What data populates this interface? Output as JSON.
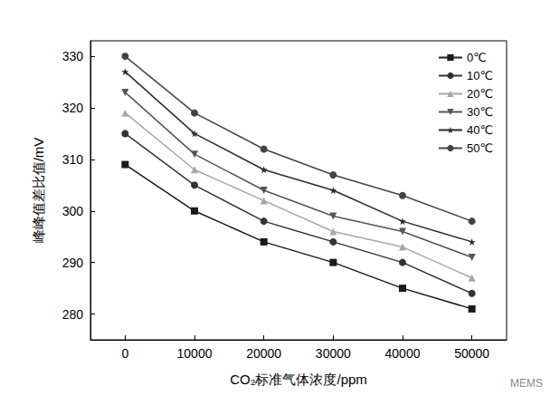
{
  "chart_data": {
    "type": "line",
    "x_label": "CO₂标准气体浓度/ppm",
    "y_label": "峰峰值差比值/mV",
    "categories": [
      "0",
      "10000",
      "20000",
      "30000",
      "40000",
      "50000"
    ],
    "ylim": [
      275,
      333
    ],
    "yticks": [
      280,
      290,
      300,
      310,
      320,
      330
    ],
    "grid": false,
    "legend": "upper right",
    "annotations": [
      "MEMS"
    ],
    "series": [
      {
        "name": "0℃",
        "color": "#1a1a1a",
        "marker": "square",
        "values": [
          309,
          300,
          294,
          290,
          285,
          281
        ]
      },
      {
        "name": "10℃",
        "color": "#333333",
        "marker": "circle",
        "values": [
          315,
          305,
          298,
          294,
          290,
          284
        ]
      },
      {
        "name": "20℃",
        "color": "#a6a6a6",
        "marker": "triangle",
        "values": [
          319,
          308,
          302,
          296,
          293,
          287
        ]
      },
      {
        "name": "30℃",
        "color": "#555555",
        "marker": "triangle_down",
        "values": [
          323,
          311,
          304,
          299,
          296,
          291
        ]
      },
      {
        "name": "40℃",
        "color": "#2b2b2b",
        "marker": "star",
        "values": [
          327,
          315,
          308,
          304,
          298,
          294
        ]
      },
      {
        "name": "50℃",
        "color": "#444444",
        "marker": "circle",
        "values": [
          330,
          319,
          312,
          307,
          303,
          298
        ]
      }
    ]
  }
}
